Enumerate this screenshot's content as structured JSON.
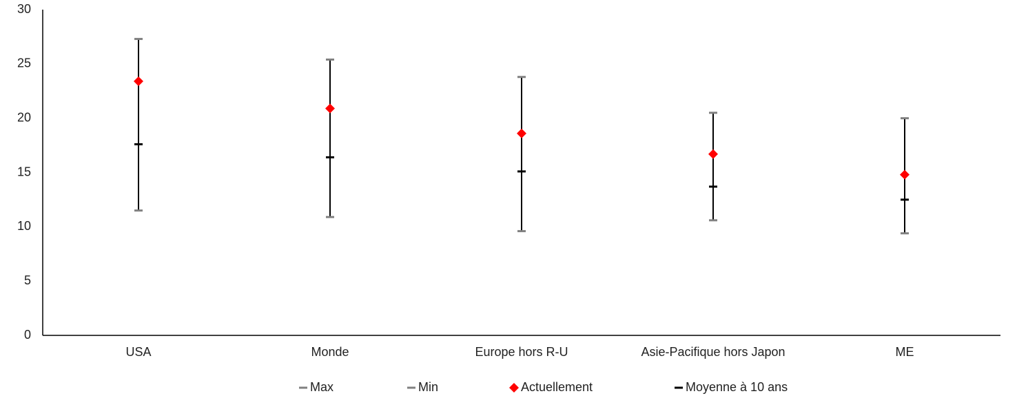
{
  "chart_data": {
    "type": "range",
    "categories": [
      "USA",
      "Monde",
      "Europe hors R-U",
      "Asie-Pacifique hors Japon",
      "ME"
    ],
    "series": [
      {
        "name": "Max",
        "color": "#808080",
        "marker": "dash",
        "values": [
          27.3,
          25.4,
          23.8,
          20.5,
          20.0
        ]
      },
      {
        "name": "Min",
        "color": "#808080",
        "marker": "dash",
        "values": [
          11.5,
          10.9,
          9.6,
          10.6,
          9.4
        ]
      },
      {
        "name": "Actuellement",
        "color": "#ff0000",
        "marker": "diamond",
        "values": [
          23.4,
          20.9,
          18.6,
          16.7,
          14.8
        ]
      },
      {
        "name": "Moyenne à 10 ans",
        "color": "#000000",
        "marker": "dash",
        "values": [
          17.6,
          16.4,
          15.1,
          13.7,
          12.5
        ]
      }
    ],
    "ylim": [
      0,
      30
    ],
    "yticks": [
      0,
      5,
      10,
      15,
      20,
      25,
      30
    ],
    "grid": false,
    "legend": "bottom"
  }
}
